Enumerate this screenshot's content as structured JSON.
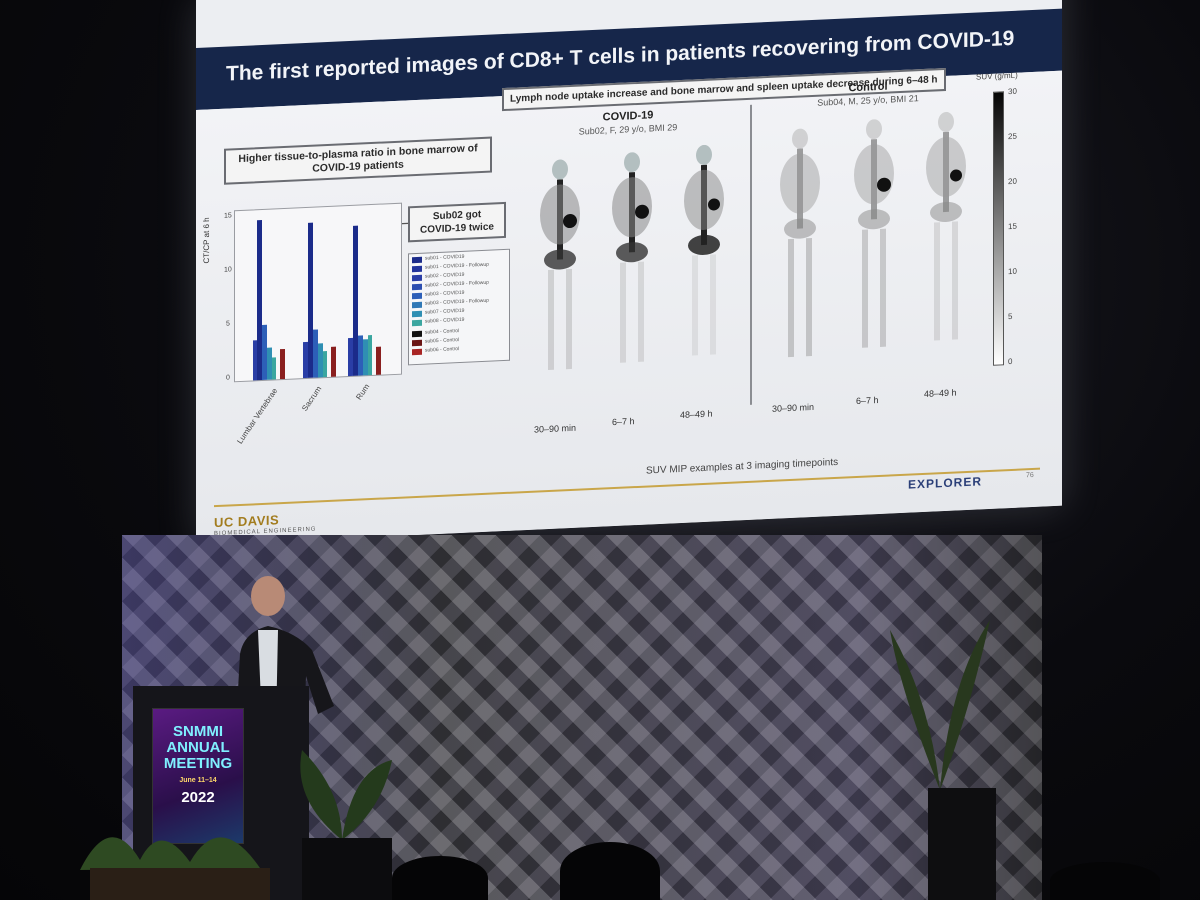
{
  "slide": {
    "title": "The first reported images of CD8+ T cells in patients recovering from COVID-19",
    "top_label": "Lymph node uptake increase and bone marrow and spleen uptake decrease during 6–48 h",
    "left_label": "Higher tissue-to-plasma ratio in bone marrow of COVID-19 patients",
    "sub_label": "Sub02 got COVID-19 twice",
    "chart": {
      "ylabel": "CT/CP at 6 h",
      "yticks": [
        "15",
        "10",
        "5",
        "0"
      ],
      "xticks": [
        "Lumbar Vertebrae",
        "Sacrum",
        "Rum"
      ],
      "legend": [
        "sub01 - COVID19",
        "sub01 - COVID19 - Followup",
        "sub02 - COVID19",
        "sub02 - COVID19 - Followup",
        "sub03 - COVID19",
        "sub03 - COVID19 - Followup",
        "sub07 - COVID19",
        "sub08 - COVID19",
        "sub04 - Control",
        "sub05 - Control",
        "sub06 - Control"
      ]
    },
    "covid": {
      "title": "COVID-19",
      "subtitle": "Sub02, F, 29 y/o, BMI 29"
    },
    "control": {
      "title": "Control",
      "subtitle": "Sub04, M, 25 y/o, BMI 21"
    },
    "colorbar": {
      "unit": "SUV (g/mL)",
      "ticks": [
        "30",
        "25",
        "20",
        "15",
        "10",
        "5",
        "0"
      ]
    },
    "timepoints": [
      "30–90 min",
      "6–7 h",
      "48–49 h",
      "30–90 min",
      "6–7 h",
      "48–49 h"
    ],
    "caption": "SUV MIP examples at 3 imaging timepoints",
    "logo_left": "UC DAVIS",
    "logo_left_sub": "BIOMEDICAL ENGINEERING",
    "logo_right": "EXPLORER",
    "page_number": "76"
  },
  "podium": {
    "line1": "SNMMI",
    "line2": "ANNUAL",
    "line3": "MEETING",
    "dates": "June 11–14",
    "year": "2022"
  }
}
